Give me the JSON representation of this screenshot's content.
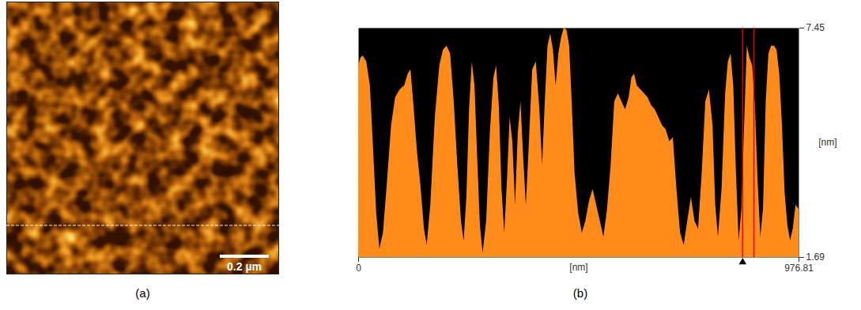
{
  "image_panel": {
    "label": "(a)",
    "scale_bar_label": "0.2 µm"
  },
  "chart_data": {
    "type": "area",
    "panel_label": "(b)",
    "color": "#ff8c1a",
    "x_label": "[nm]",
    "y_label": "[nm]",
    "xlim": [
      0,
      976.81
    ],
    "ylim": [
      1.69,
      7.45
    ],
    "xticks": [
      0,
      976.81
    ],
    "yticks": [
      1.69,
      7.45
    ],
    "grid": false,
    "cursors": [
      852,
      877
    ],
    "x": [
      0,
      5,
      10,
      18,
      26,
      34,
      40,
      47,
      55,
      64,
      73,
      82,
      92,
      102,
      110,
      116,
      122,
      130,
      138,
      146,
      152,
      160,
      170,
      180,
      188,
      196,
      204,
      212,
      220,
      228,
      234,
      240,
      246,
      252,
      258,
      264,
      270,
      276,
      284,
      292,
      300,
      306,
      312,
      318,
      324,
      330,
      336,
      342,
      348,
      354,
      360,
      366,
      372,
      378,
      386,
      394,
      402,
      408,
      414,
      420,
      426,
      432,
      438,
      444,
      450,
      456,
      462,
      468,
      474,
      480,
      488,
      496,
      504,
      512,
      520,
      528,
      536,
      544,
      552,
      560,
      568,
      576,
      584,
      592,
      600,
      606,
      612,
      618,
      626,
      634,
      642,
      650,
      658,
      666,
      674,
      682,
      690,
      698,
      706,
      714,
      722,
      730,
      738,
      746,
      754,
      762,
      770,
      778,
      786,
      792,
      798,
      806,
      814,
      820,
      826,
      832,
      838,
      844,
      850,
      856,
      862,
      868,
      874,
      880,
      886,
      892,
      898,
      904,
      910,
      916,
      922,
      928,
      934,
      940,
      946,
      952,
      958,
      964,
      970,
      976.81
    ],
    "values": [
      6.5,
      6.7,
      6.75,
      6.6,
      6.0,
      4.2,
      2.8,
      1.9,
      2.3,
      3.6,
      5.0,
      5.7,
      5.9,
      6.0,
      6.3,
      6.4,
      5.6,
      4.4,
      3.5,
      2.4,
      2.0,
      3.0,
      5.2,
      6.5,
      6.9,
      7.0,
      6.8,
      5.6,
      4.0,
      2.6,
      2.1,
      3.2,
      5.4,
      6.6,
      6.0,
      4.2,
      2.5,
      1.8,
      2.6,
      4.8,
      6.2,
      6.5,
      5.5,
      3.4,
      2.3,
      3.6,
      5.2,
      4.6,
      3.0,
      4.8,
      5.6,
      4.2,
      3.0,
      4.4,
      6.4,
      6.6,
      5.4,
      4.0,
      5.6,
      7.0,
      7.3,
      6.9,
      6.0,
      6.8,
      7.2,
      7.45,
      7.4,
      7.0,
      5.5,
      3.8,
      2.8,
      2.3,
      2.6,
      3.1,
      3.4,
      3.0,
      2.6,
      2.2,
      2.9,
      4.0,
      5.6,
      5.8,
      5.6,
      5.4,
      5.7,
      6.2,
      6.3,
      6.0,
      5.9,
      5.8,
      5.7,
      5.5,
      5.4,
      5.2,
      5.0,
      4.9,
      4.6,
      4.7,
      3.4,
      2.3,
      2.0,
      2.6,
      3.2,
      2.6,
      2.4,
      3.8,
      5.6,
      5.9,
      5.0,
      3.0,
      2.2,
      3.4,
      5.8,
      6.6,
      6.8,
      6.0,
      3.8,
      2.1,
      2.9,
      5.0,
      7.0,
      6.7,
      6.5,
      5.5,
      3.6,
      2.2,
      2.9,
      5.6,
      6.8,
      7.0,
      7.0,
      6.9,
      6.3,
      5.0,
      3.3,
      2.5,
      2.1,
      2.4,
      3.0,
      2.9
    ]
  }
}
